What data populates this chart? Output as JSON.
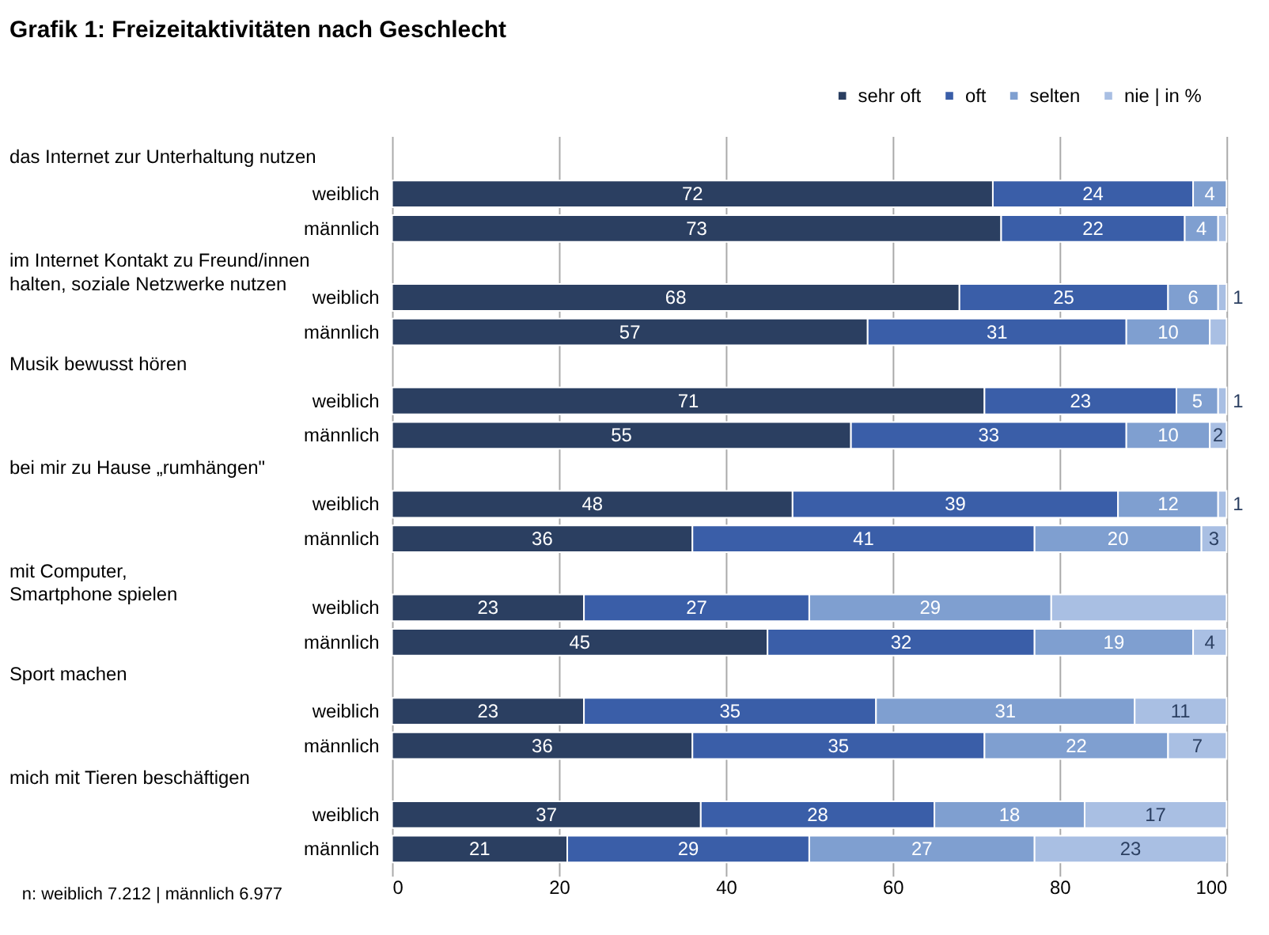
{
  "chart_data": {
    "type": "bar",
    "orientation": "horizontal",
    "stacked": true,
    "title": "Grafik 1:  Freizeitaktivitäten nach Geschlecht",
    "categories": [
      "weiblich",
      "männlich",
      "weiblich",
      "männlich",
      "weiblich",
      "männlich",
      "weiblich",
      "männlich",
      "weiblich",
      "männlich",
      "weiblich",
      "männlich",
      "weiblich",
      "männlich"
    ],
    "series": [
      {
        "name": "sehr oft",
        "color": "#2b3f61",
        "values": [
          72,
          73,
          68,
          57,
          71,
          55,
          48,
          36,
          23,
          45,
          23,
          36,
          37,
          21
        ],
        "value_labels": [
          "72",
          "73",
          "68",
          "57",
          "71",
          "55",
          "48",
          "36",
          "23",
          "45",
          "23",
          "36",
          "37",
          "21"
        ]
      },
      {
        "name": "oft",
        "color": "#3a5ea8",
        "values": [
          24,
          22,
          25,
          31,
          23,
          33,
          39,
          41,
          27,
          32,
          35,
          35,
          28,
          29
        ],
        "value_labels": [
          "24",
          "22",
          "25",
          "31",
          "23",
          "33",
          "39",
          "41",
          "27",
          "32",
          "35",
          "35",
          "28",
          "29"
        ]
      },
      {
        "name": "selten",
        "color": "#7f9fd0",
        "values": [
          4,
          4,
          6,
          10,
          5,
          10,
          12,
          20,
          29,
          19,
          31,
          22,
          18,
          27
        ],
        "value_labels": [
          "4",
          "4",
          "6",
          "10",
          "5",
          "10",
          "12",
          "20",
          "29",
          "19",
          "31",
          "22",
          "18",
          "27"
        ]
      },
      {
        "name": "nie | in %",
        "color": "#a9bfe3",
        "values": [
          0,
          1,
          1,
          2,
          1,
          2,
          1,
          3,
          21,
          4,
          11,
          7,
          17,
          23
        ],
        "value_labels": [
          null,
          null,
          "1",
          null,
          "1",
          "2",
          "1",
          "3",
          null,
          "4",
          "11",
          "7",
          "17",
          "23"
        ]
      }
    ],
    "xlim": [
      0,
      100
    ],
    "xticks": [
      0,
      20,
      40,
      60,
      80,
      100
    ],
    "grid": "x",
    "legend": "top right",
    "annotations": [
      "das Internet zur Unterhaltung nutzen",
      "im Internet Kontakt zu Freund/innen\nhalten, soziale Netzwerke nutzen",
      "Musik bewusst hören",
      "bei mir zu Hause „rumhängen\"",
      "mit Computer,\nSmartphone spielen",
      "Sport machen",
      "mich mit Tieren beschäftigen",
      "n: weiblich 7.212 | männlich 6.977"
    ]
  }
}
